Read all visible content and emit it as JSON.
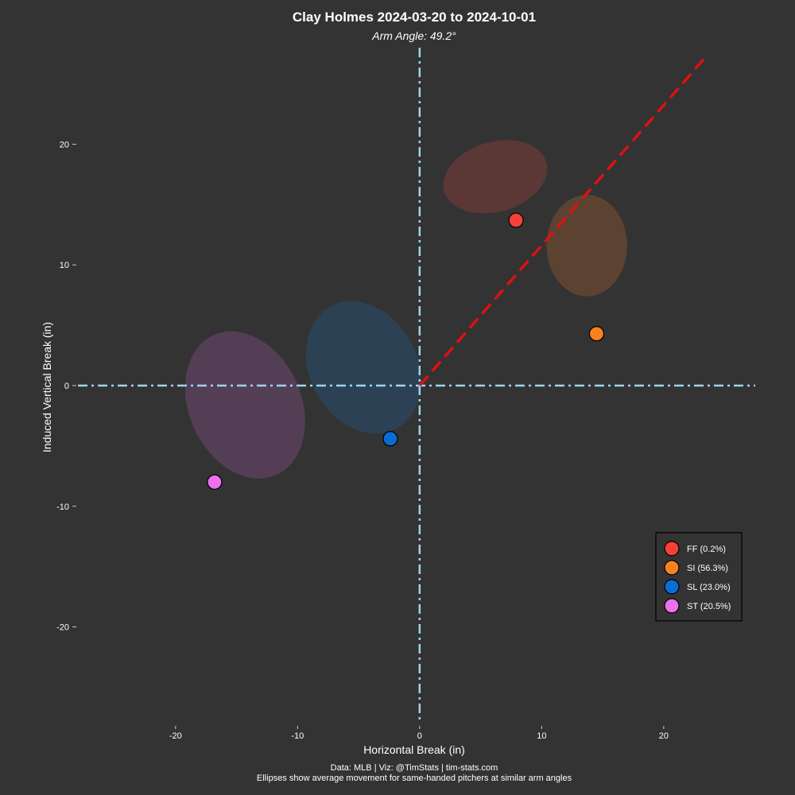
{
  "chart_data": {
    "type": "scatter",
    "title": "Clay Holmes 2024-03-20 to 2024-10-01",
    "subtitle": "Arm Angle: 49.2°",
    "xlabel": "Horizontal Break (in)",
    "ylabel": "Induced Vertical Break (in)",
    "xlim": [
      -28,
      27.5
    ],
    "ylim": [
      -28,
      28
    ],
    "x_ticks": [
      -20,
      -10,
      0,
      10,
      20
    ],
    "y_ticks": [
      -20,
      -10,
      0,
      10,
      20
    ],
    "x_tick_labels": [
      "-20",
      "-10",
      "0",
      "10",
      "20"
    ],
    "y_tick_labels": [
      "-20",
      "-10",
      "0",
      "10",
      "20"
    ],
    "grid": false,
    "legend_position": "right",
    "caption_lines": [
      "Data: MLB | Viz: @TimStats | tim-stats.com",
      "Ellipses show average movement for same-handed pitchers at similar arm angles"
    ],
    "arm_angle_line": {
      "color": "#dd1111",
      "from": [
        0,
        0
      ],
      "to": [
        23.5,
        27.3
      ]
    },
    "series": [
      {
        "name": "FF",
        "label": "FF (0.2%)",
        "usage": 0.2,
        "color": "#f7403a",
        "x": 7.9,
        "y": 13.7,
        "ellipse": {
          "cx": 6.2,
          "cy": 17.3,
          "rx": 4.35,
          "ry": 2.9,
          "angle": 16,
          "color": "#5e3837"
        }
      },
      {
        "name": "SI",
        "label": "SI (56.3%)",
        "usage": 56.3,
        "color": "#f9821e",
        "x": 14.5,
        "y": 4.3,
        "ellipse": {
          "cx": 13.7,
          "cy": 11.6,
          "rx": 3.3,
          "ry": 4.2,
          "angle": 0,
          "color": "#5f4431"
        }
      },
      {
        "name": "SL",
        "label": "SL (23.0%)",
        "usage": 23.0,
        "color": "#0c6cd6",
        "x": -2.4,
        "y": -4.4,
        "ellipse": {
          "cx": -4.6,
          "cy": 1.5,
          "rx": 4.4,
          "ry": 5.75,
          "angle": 28,
          "color": "#2c4256"
        }
      },
      {
        "name": "ST",
        "label": "ST (20.5%)",
        "usage": 20.5,
        "color": "#ed71ed",
        "x": -16.8,
        "y": -8.0,
        "ellipse": {
          "cx": -14.3,
          "cy": -1.6,
          "rx": 4.6,
          "ry": 6.35,
          "angle": 24,
          "color": "#553f57"
        }
      }
    ]
  }
}
